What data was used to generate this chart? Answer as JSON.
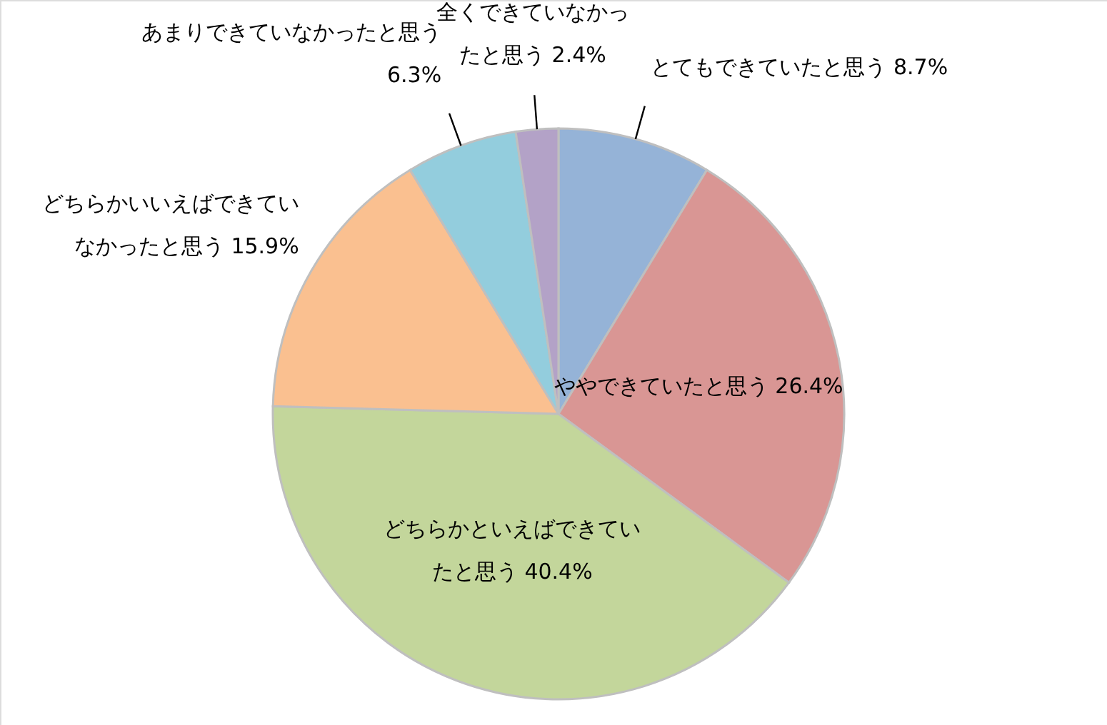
{
  "chart_data": {
    "type": "pie",
    "categories": [
      "とてもできていたと思う",
      "ややできていたと思う",
      "どちらかといえばできていたと思う",
      "どちらかいいえばできていなかったと思う",
      "あまりできていなかったと思う",
      "全くできていなかったと思う"
    ],
    "values": [
      8.7,
      26.4,
      40.4,
      15.9,
      6.3,
      2.4
    ],
    "value_labels": [
      "8.7%",
      "26.4%",
      "40.4%",
      "15.9%",
      "6.3%",
      "2.4%"
    ],
    "colors": [
      "#95b3d7",
      "#d99694",
      "#c3d69b",
      "#fac090",
      "#93cddd",
      "#b3a2c7"
    ]
  }
}
